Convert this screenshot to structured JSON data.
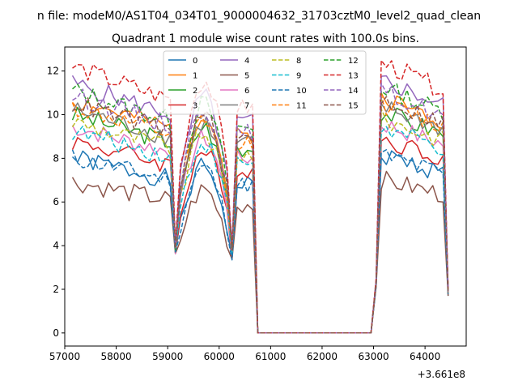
{
  "chart_data": {
    "type": "line",
    "suptitle": "n file: modeM0/AS1T04_034T01_9000004632_31703cztM0_level2_quad_clean",
    "title": "Quadrant 1 module wise count rates with 100.0s bins.",
    "xlabel": "",
    "ylabel": "",
    "x_offset_label": "+3.661e8",
    "xlim": [
      57000,
      64800
    ],
    "ylim": [
      -0.6,
      13.1
    ],
    "xticks": [
      57000,
      58000,
      59000,
      60000,
      61000,
      62000,
      63000,
      64000
    ],
    "yticks": [
      0,
      2,
      4,
      6,
      8,
      10,
      12
    ],
    "x_start": 57150,
    "x_step": 100,
    "n_points": 74,
    "legend_position": "top-center",
    "legend_columns": 4,
    "series": [
      {
        "name": "0",
        "color": "#1f77b4",
        "dash": "solid",
        "base": 7.3,
        "scale": 0.85,
        "seed": 1
      },
      {
        "name": "1",
        "color": "#ff7f0e",
        "dash": "solid",
        "base": 9.7,
        "scale": 0.93,
        "seed": 2
      },
      {
        "name": "2",
        "color": "#2ca02c",
        "dash": "solid",
        "base": 9.1,
        "scale": 0.95,
        "seed": 3
      },
      {
        "name": "3",
        "color": "#d62728",
        "dash": "solid",
        "base": 8.0,
        "scale": 0.9,
        "seed": 4
      },
      {
        "name": "4",
        "color": "#9467bd",
        "dash": "solid",
        "base": 10.4,
        "scale": 0.95,
        "seed": 5
      },
      {
        "name": "5",
        "color": "#8c564b",
        "dash": "solid",
        "base": 6.3,
        "scale": 0.85,
        "seed": 6
      },
      {
        "name": "6",
        "color": "#e377c2",
        "dash": "solid",
        "base": 8.6,
        "scale": 0.93,
        "seed": 7
      },
      {
        "name": "7",
        "color": "#7f7f7f",
        "dash": "solid",
        "base": 9.3,
        "scale": 0.93,
        "seed": 8
      },
      {
        "name": "8",
        "color": "#bcbd22",
        "dash": "dashed",
        "base": 8.8,
        "scale": 0.93,
        "seed": 9
      },
      {
        "name": "9",
        "color": "#17becf",
        "dash": "dashed",
        "base": 8.4,
        "scale": 0.9,
        "seed": 10
      },
      {
        "name": "10",
        "color": "#1f77b4",
        "dash": "dashed",
        "base": 7.3,
        "scale": 0.88,
        "seed": 11
      },
      {
        "name": "11",
        "color": "#ff7f0e",
        "dash": "dashed",
        "base": 9.4,
        "scale": 0.93,
        "seed": 12
      },
      {
        "name": "12",
        "color": "#2ca02c",
        "dash": "dashed",
        "base": 10.1,
        "scale": 0.95,
        "seed": 13
      },
      {
        "name": "13",
        "color": "#d62728",
        "dash": "dashed",
        "base": 11.1,
        "scale": 1.0,
        "seed": 14
      },
      {
        "name": "14",
        "color": "#9467bd",
        "dash": "dashed",
        "base": 9.9,
        "scale": 0.95,
        "seed": 15
      },
      {
        "name": "15",
        "color": "#8c564b",
        "dash": "dashed",
        "base": 9.6,
        "scale": 0.93,
        "seed": 16
      }
    ]
  }
}
